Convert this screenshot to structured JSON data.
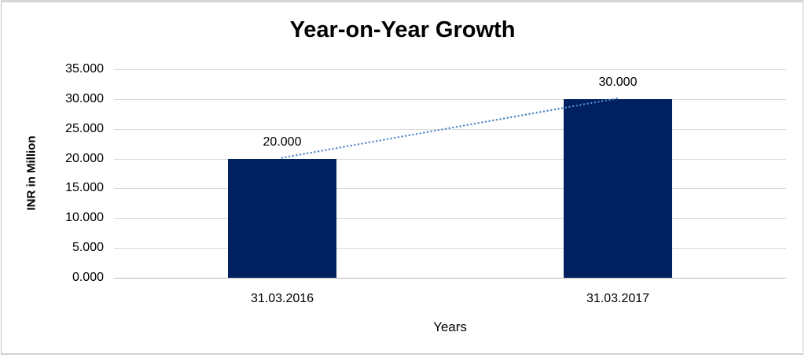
{
  "chart_data": {
    "type": "bar",
    "title": "Year-on-Year Growth",
    "xlabel": "Years",
    "ylabel": "INR in Million",
    "categories": [
      "31.03.2016",
      "31.03.2017"
    ],
    "values": [
      20,
      30
    ],
    "value_labels": [
      "20.000",
      "30.000"
    ],
    "ytick_labels": [
      "0.000",
      "5.000",
      "10.000",
      "15.000",
      "20.000",
      "25.000",
      "30.000",
      "35.000"
    ],
    "ylim": [
      0,
      35
    ],
    "grid": true,
    "legend": "none",
    "bar_color": "#002060",
    "trendline": {
      "style": "dotted",
      "color": "#4f86c6",
      "from_value": 20,
      "to_value": 30
    }
  },
  "colors": {
    "gridline": "#d9d9d9",
    "axis_line": "#b9b9b9",
    "text": "#000000",
    "frame_border": "#d4d4d4",
    "background": "#ffffff"
  }
}
